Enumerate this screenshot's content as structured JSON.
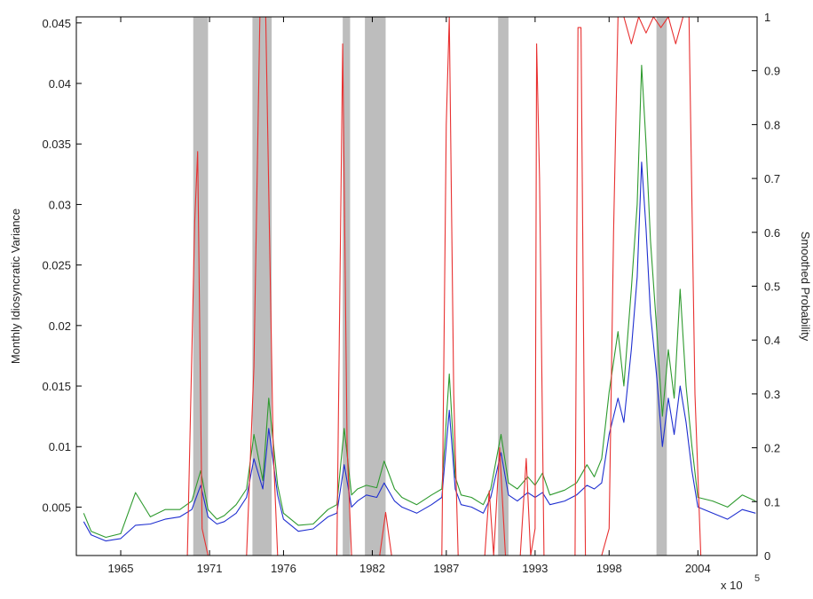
{
  "chart_data": {
    "type": "line",
    "title": "",
    "xlabel": "",
    "x_exponent_label": "x 10",
    "x_exponent_power": "5",
    "ylabel_left": "Monthly Idiosyncratic Variance",
    "ylabel_right": "Smoothed Probability",
    "xlim": [
      1962,
      2008
    ],
    "ylim_left": [
      0.001,
      0.0455
    ],
    "ylim_right": [
      0,
      1
    ],
    "x_ticks": [
      1965,
      1971,
      1976,
      1982,
      1987,
      1993,
      1998,
      2004
    ],
    "x_tick_labels": [
      "1965",
      "1971",
      "1976",
      "1982",
      "1987",
      "1993",
      "1998",
      "2004"
    ],
    "y_left_ticks": [
      0.005,
      0.01,
      0.015,
      0.02,
      0.025,
      0.03,
      0.035,
      0.04,
      0.045
    ],
    "y_left_tick_labels": [
      "0.005",
      "0.01",
      "0.015",
      "0.02",
      "0.025",
      "0.03",
      "0.035",
      "0.04",
      "0.045"
    ],
    "y_right_ticks": [
      0,
      0.1,
      0.2,
      0.3,
      0.4,
      0.5,
      0.6,
      0.7,
      0.8,
      0.9,
      1
    ],
    "y_right_tick_labels": [
      "0",
      "0.1",
      "0.2",
      "0.3",
      "0.4",
      "0.5",
      "0.6",
      "0.7",
      "0.8",
      "0.9",
      "1"
    ],
    "grid": false,
    "recession_bands": [
      [
        1969.9,
        1970.9
      ],
      [
        1973.9,
        1975.2
      ],
      [
        1980.0,
        1980.5
      ],
      [
        1981.5,
        1982.9
      ],
      [
        1990.5,
        1991.2
      ],
      [
        2001.2,
        2001.9
      ]
    ],
    "colors": {
      "series_blue": "#1f2fd0",
      "series_green": "#2e9a2e",
      "series_red": "#e83030",
      "recession": "#bdbdbd",
      "axis": "#000000"
    },
    "series": [
      {
        "color": "#1f2fd0",
        "axis": "left",
        "x": [
          1962.5,
          1963.0,
          1964.0,
          1965.0,
          1966.0,
          1967.0,
          1968.0,
          1969.0,
          1969.8,
          1970.4,
          1970.9,
          1971.5,
          1972.0,
          1972.8,
          1973.5,
          1974.0,
          1974.6,
          1975.0,
          1975.6,
          1976.0,
          1977.0,
          1978.0,
          1979.0,
          1979.6,
          1980.1,
          1980.6,
          1981.0,
          1981.6,
          1982.3,
          1982.8,
          1983.5,
          1984.0,
          1985.0,
          1986.0,
          1986.7,
          1987.2,
          1987.6,
          1988.0,
          1988.7,
          1989.5,
          1990.0,
          1990.7,
          1991.2,
          1991.8,
          1992.5,
          1993.0,
          1993.5,
          1994.0,
          1995.0,
          1995.8,
          1996.5,
          1997.0,
          1997.5,
          1998.0,
          1998.6,
          1999.0,
          1999.5,
          1999.9,
          2000.2,
          2000.5,
          2000.8,
          2001.2,
          2001.6,
          2002.0,
          2002.4,
          2002.8,
          2003.2,
          2003.6,
          2004.0,
          2005.0,
          2006.0,
          2007.0,
          2007.9
        ],
        "y": [
          0.0038,
          0.0027,
          0.0022,
          0.0024,
          0.0035,
          0.0036,
          0.004,
          0.0042,
          0.0048,
          0.0068,
          0.0042,
          0.0036,
          0.0038,
          0.0045,
          0.0058,
          0.009,
          0.0065,
          0.0115,
          0.006,
          0.004,
          0.003,
          0.0032,
          0.0042,
          0.0045,
          0.0085,
          0.005,
          0.0055,
          0.006,
          0.0058,
          0.007,
          0.0055,
          0.005,
          0.0045,
          0.0052,
          0.0058,
          0.013,
          0.0065,
          0.0052,
          0.005,
          0.0045,
          0.0058,
          0.0095,
          0.006,
          0.0055,
          0.0062,
          0.0058,
          0.0062,
          0.0052,
          0.0055,
          0.006,
          0.0068,
          0.0065,
          0.007,
          0.011,
          0.014,
          0.012,
          0.018,
          0.024,
          0.0335,
          0.028,
          0.021,
          0.016,
          0.01,
          0.014,
          0.011,
          0.015,
          0.012,
          0.008,
          0.005,
          0.0045,
          0.004,
          0.0048,
          0.0045
        ]
      },
      {
        "color": "#2e9a2e",
        "axis": "left",
        "x": [
          1962.5,
          1963.0,
          1964.0,
          1965.0,
          1966.0,
          1967.0,
          1968.0,
          1969.0,
          1969.8,
          1970.4,
          1970.9,
          1971.5,
          1972.0,
          1972.8,
          1973.5,
          1974.0,
          1974.6,
          1975.0,
          1975.6,
          1976.0,
          1977.0,
          1978.0,
          1979.0,
          1979.6,
          1980.1,
          1980.6,
          1981.0,
          1981.6,
          1982.3,
          1982.8,
          1983.5,
          1984.0,
          1985.0,
          1986.0,
          1986.7,
          1987.2,
          1987.6,
          1988.0,
          1988.7,
          1989.5,
          1990.0,
          1990.7,
          1991.2,
          1991.8,
          1992.5,
          1993.0,
          1993.5,
          1994.0,
          1995.0,
          1995.8,
          1996.5,
          1997.0,
          1997.5,
          1998.0,
          1998.6,
          1999.0,
          1999.5,
          1999.9,
          2000.2,
          2000.5,
          2000.8,
          2001.2,
          2001.6,
          2002.0,
          2002.4,
          2002.8,
          2003.2,
          2003.6,
          2004.0,
          2005.0,
          2006.0,
          2007.0,
          2007.9
        ],
        "y": [
          0.0045,
          0.003,
          0.0025,
          0.0028,
          0.0062,
          0.0042,
          0.0048,
          0.0048,
          0.0055,
          0.008,
          0.0048,
          0.004,
          0.0043,
          0.0052,
          0.0065,
          0.011,
          0.0072,
          0.014,
          0.0068,
          0.0045,
          0.0035,
          0.0036,
          0.0048,
          0.0052,
          0.0115,
          0.006,
          0.0065,
          0.0068,
          0.0066,
          0.0088,
          0.0065,
          0.0058,
          0.0052,
          0.006,
          0.0065,
          0.016,
          0.0075,
          0.006,
          0.0058,
          0.0052,
          0.0065,
          0.011,
          0.007,
          0.0065,
          0.0075,
          0.0068,
          0.0078,
          0.006,
          0.0064,
          0.007,
          0.0085,
          0.0075,
          0.009,
          0.0145,
          0.0195,
          0.015,
          0.023,
          0.03,
          0.0415,
          0.035,
          0.027,
          0.02,
          0.0125,
          0.018,
          0.014,
          0.023,
          0.015,
          0.01,
          0.0058,
          0.0055,
          0.005,
          0.006,
          0.0055
        ]
      },
      {
        "color": "#e83030",
        "axis": "right",
        "x": [
          1962.5,
          1969.5,
          1970.0,
          1970.2,
          1970.5,
          1970.9,
          1973.5,
          1974.0,
          1974.4,
          1974.8,
          1975.3,
          1975.6,
          1979.6,
          1980.0,
          1980.3,
          1980.6,
          1982.5,
          1982.9,
          1983.3,
          1986.7,
          1987.0,
          1987.2,
          1987.5,
          1987.8,
          1989.6,
          1989.9,
          1990.2,
          1990.6,
          1991.0,
          1991.4,
          1992.0,
          1992.4,
          1992.7,
          1993.0,
          1993.1,
          1993.3,
          1993.6,
          1995.7,
          1995.9,
          1996.1,
          1996.4,
          1997.5,
          1998.0,
          1998.3,
          1998.6,
          1999.0,
          1999.5,
          2000.0,
          2000.5,
          2001.0,
          2001.5,
          2002.0,
          2002.5,
          2003.0,
          2003.4,
          2003.8,
          2004.2,
          2008.0
        ],
        "y": [
          0.0,
          0.0,
          0.62,
          0.75,
          0.05,
          0.0,
          0.0,
          0.35,
          1.0,
          1.0,
          0.2,
          0.0,
          0.0,
          0.95,
          0.2,
          0.0,
          0.0,
          0.08,
          0.0,
          0.0,
          0.8,
          1.0,
          0.3,
          0.0,
          0.0,
          0.12,
          0.0,
          0.2,
          0.0,
          0.0,
          0.0,
          0.18,
          0.0,
          0.05,
          0.95,
          0.7,
          0.0,
          0.0,
          0.98,
          0.98,
          0.0,
          0.0,
          0.05,
          0.6,
          1.0,
          1.0,
          0.95,
          1.0,
          0.97,
          1.0,
          0.98,
          1.0,
          0.95,
          1.0,
          1.0,
          0.3,
          0.0,
          0.0
        ]
      }
    ]
  }
}
